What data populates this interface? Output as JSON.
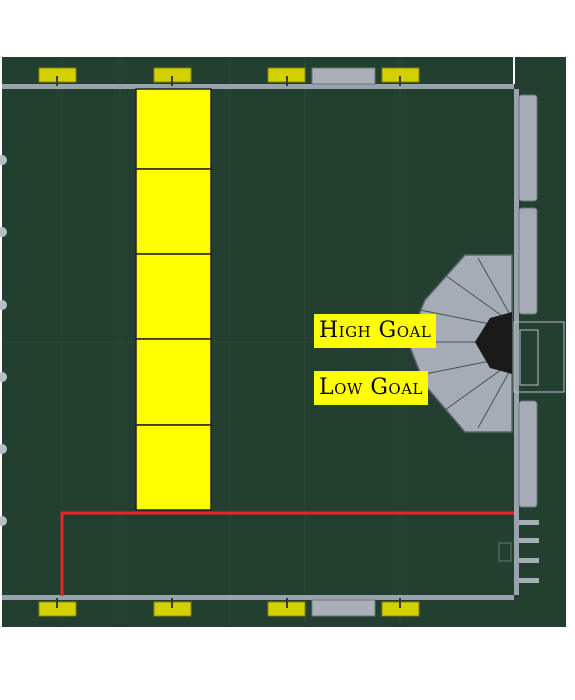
{
  "labels": {
    "high_goal": "High Goal",
    "low_goal": "Low Goal"
  },
  "colors": {
    "field": "#233f2f",
    "zone_yellow": "#ffff00",
    "plate_yellow": "#d4d000",
    "rail_gray": "#9aa3ad",
    "route_red": "#e8262a",
    "goal_gray": "#a5acb5",
    "goal_dark": "#1a1a1a",
    "outside": "#ffffff"
  },
  "icons": {
    "goal": "hexagonal-goal-structure-icon"
  }
}
